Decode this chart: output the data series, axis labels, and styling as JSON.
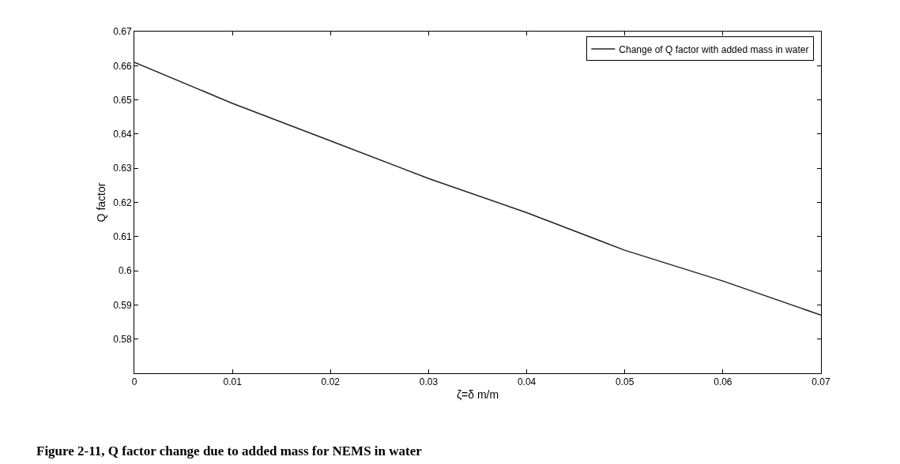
{
  "chart_data": {
    "type": "line",
    "xlabel": "ζ=δ m/m",
    "ylabel": "Q factor",
    "x": [
      0,
      0.01,
      0.02,
      0.03,
      0.04,
      0.05,
      0.06,
      0.07
    ],
    "series": [
      {
        "name": "Change of Q factor with added mass in water",
        "color": "#222222",
        "values": [
          0.661,
          0.649,
          0.638,
          0.627,
          0.617,
          0.606,
          0.597,
          0.587
        ]
      }
    ],
    "xlim": [
      0,
      0.07
    ],
    "xticks": [
      0,
      0.01,
      0.02,
      0.03,
      0.04,
      0.05,
      0.06,
      0.07
    ],
    "ylim": [
      0.57,
      0.67
    ],
    "yticks": [
      0.58,
      0.59,
      0.6,
      0.61,
      0.62,
      0.63,
      0.64,
      0.65,
      0.66,
      0.67
    ],
    "grid": false,
    "legend": "top right",
    "marker": "none",
    "line_style": "solid",
    "annotations": [
      "Figure 2-11, Q factor change due to added mass for NEMS in water"
    ]
  }
}
